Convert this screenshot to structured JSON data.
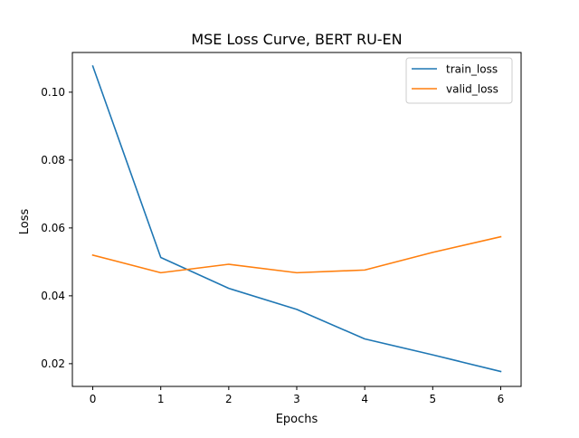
{
  "chart_data": {
    "type": "line",
    "title": "MSE Loss Curve, BERT RU-EN",
    "xlabel": "Epochs",
    "ylabel": "Loss",
    "x": [
      0,
      1,
      2,
      3,
      4,
      5,
      6
    ],
    "xticks": [
      "0",
      "1",
      "2",
      "3",
      "4",
      "5",
      "6"
    ],
    "yticks": [
      "0.02",
      "0.04",
      "0.06",
      "0.08",
      "0.10"
    ],
    "xlim": [
      -0.3,
      6.3
    ],
    "ylim": [
      0.0133,
      0.1117
    ],
    "grid": false,
    "legend_position": "top-right",
    "series": [
      {
        "name": "train_loss",
        "color": "#1f77b4",
        "values": [
          0.1077,
          0.0513,
          0.0422,
          0.036,
          0.0273,
          0.0226,
          0.0177
        ]
      },
      {
        "name": "valid_loss",
        "color": "#ff7f0e",
        "values": [
          0.052,
          0.0468,
          0.0493,
          0.0468,
          0.0476,
          0.0528,
          0.0574
        ]
      }
    ]
  }
}
